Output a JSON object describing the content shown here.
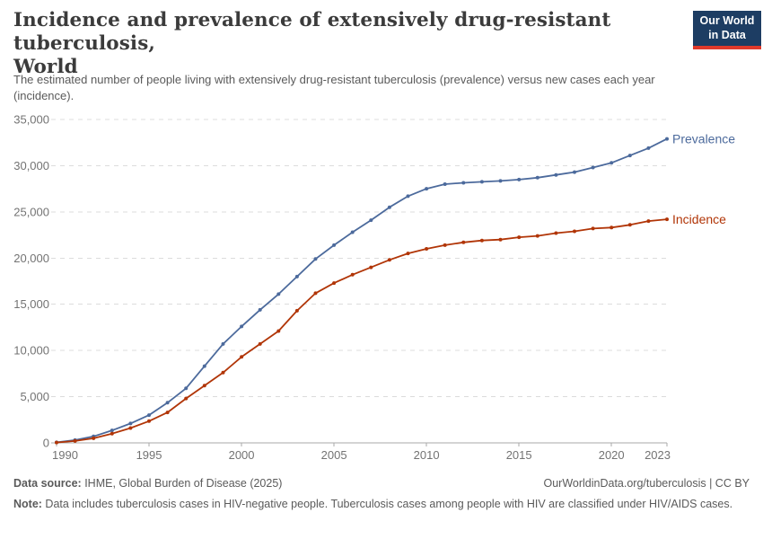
{
  "header": {
    "title_line1": "Incidence and prevalence of extensively drug-resistant tuberculosis,",
    "title_line2": "World",
    "subtitle": "The estimated number of people living with extensively drug-resistant tuberculosis (prevalence) versus new cases each year (incidence).",
    "logo_line1": "Our World",
    "logo_line2": "in Data",
    "logo_background": "#1d3d63",
    "logo_underline": "#e0392b"
  },
  "chart_data": {
    "type": "line",
    "title": "Incidence and prevalence of extensively drug-resistant tuberculosis, World",
    "x": [
      1990,
      1991,
      1992,
      1993,
      1994,
      1995,
      1996,
      1997,
      1998,
      1999,
      2000,
      2001,
      2002,
      2003,
      2004,
      2005,
      2006,
      2007,
      2008,
      2009,
      2010,
      2011,
      2012,
      2013,
      2014,
      2015,
      2016,
      2017,
      2018,
      2019,
      2020,
      2021,
      2022,
      2023
    ],
    "series": [
      {
        "name": "Prevalence",
        "color": "#4C6A9C",
        "values": [
          60,
          300,
          700,
          1350,
          2100,
          3000,
          4350,
          5900,
          8300,
          10700,
          12600,
          14400,
          16100,
          18000,
          19900,
          21400,
          22800,
          24100,
          25500,
          26700,
          27500,
          28000,
          28150,
          28250,
          28350,
          28500,
          28700,
          29000,
          29300,
          29800,
          30300,
          31100,
          31900,
          32900
        ]
      },
      {
        "name": "Incidence",
        "color": "#B13507",
        "values": [
          40,
          200,
          500,
          1000,
          1600,
          2350,
          3300,
          4800,
          6200,
          7600,
          9300,
          10700,
          12100,
          14300,
          16200,
          17300,
          18200,
          19000,
          19800,
          20500,
          21000,
          21400,
          21700,
          21900,
          22000,
          22250,
          22400,
          22700,
          22900,
          23200,
          23300,
          23600,
          24000,
          24200
        ]
      }
    ],
    "ylim": [
      0,
      35000
    ],
    "xlim": [
      1990,
      2023
    ],
    "yticks": [
      0,
      5000,
      10000,
      15000,
      20000,
      25000,
      30000,
      35000
    ],
    "ytick_labels": [
      "0",
      "5,000",
      "10,000",
      "15,000",
      "20,000",
      "25,000",
      "30,000",
      "35,000"
    ],
    "xticks": [
      1990,
      1995,
      2000,
      2005,
      2010,
      2015,
      2020,
      2023
    ],
    "grid": "horizontal-dashed",
    "legend_position": "line-end-labels",
    "xlabel": "",
    "ylabel": ""
  },
  "footer": {
    "data_source_label": "Data source:",
    "data_source_value": " IHME, Global Burden of Disease (2025)",
    "link": "OurWorldinData.org/tuberculosis | CC BY",
    "note_label": "Note:",
    "note_value": " Data includes tuberculosis cases in HIV-negative people. Tuberculosis cases among people with HIV are classified under HIV/AIDS cases."
  }
}
